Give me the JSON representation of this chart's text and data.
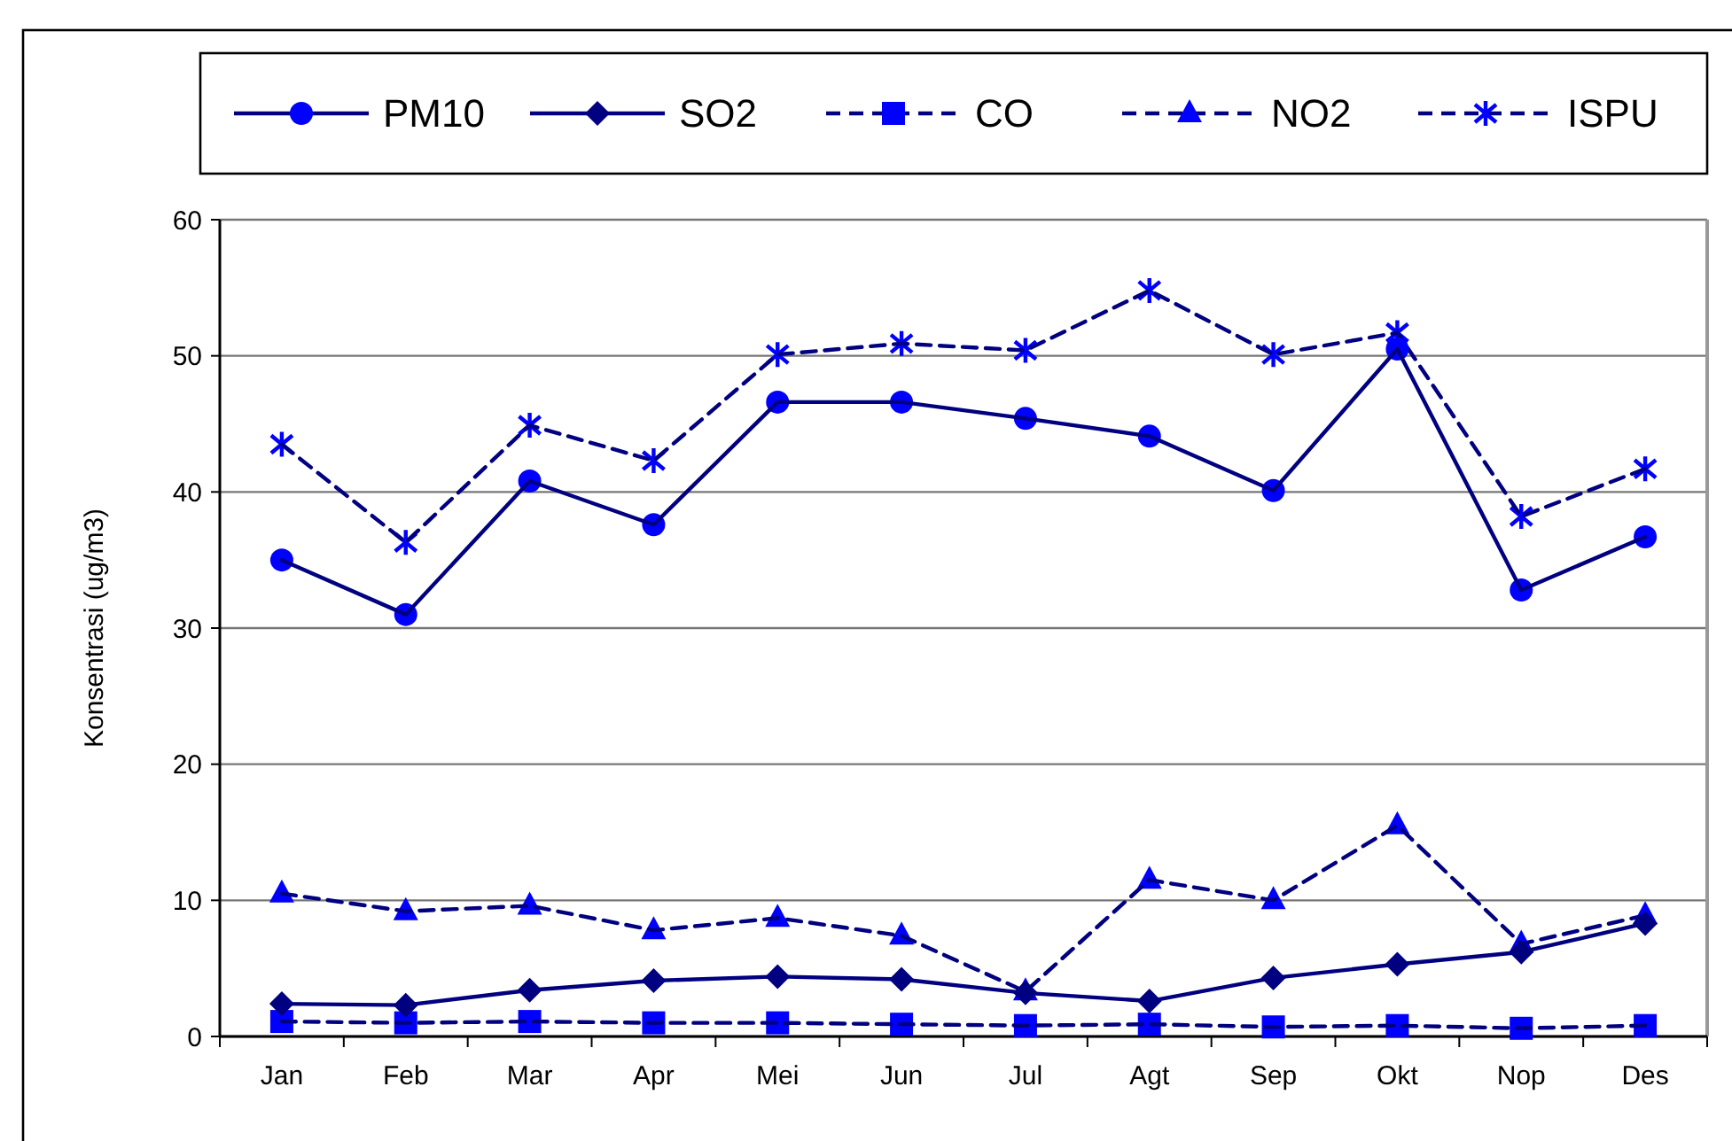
{
  "chart_data": {
    "type": "line",
    "ylabel": "Konsentrasi (ug/m3)",
    "categories": [
      "Jan",
      "Feb",
      "Mar",
      "Apr",
      "Mei",
      "Jun",
      "Jul",
      "Agt",
      "Sep",
      "Okt",
      "Nop",
      "Des"
    ],
    "series": [
      {
        "name": "PM10",
        "color": "#0000ff",
        "marker": "circle",
        "line_style": "solid",
        "values": [
          35.0,
          31.0,
          40.8,
          37.6,
          46.6,
          46.6,
          45.4,
          44.1,
          40.1,
          50.5,
          32.8,
          36.7
        ]
      },
      {
        "name": "SO2",
        "color": "#000080",
        "marker": "diamond",
        "line_style": "solid",
        "values": [
          2.4,
          2.3,
          3.4,
          4.1,
          4.4,
          4.2,
          3.2,
          2.6,
          4.3,
          5.3,
          6.2,
          8.3
        ]
      },
      {
        "name": "CO",
        "color": "#0000ff",
        "marker": "square",
        "line_style": "dashed",
        "values": [
          1.1,
          1.0,
          1.1,
          1.0,
          1.0,
          0.9,
          0.8,
          0.9,
          0.7,
          0.8,
          0.6,
          0.8
        ]
      },
      {
        "name": "NO2",
        "color": "#0000ff",
        "marker": "triangle",
        "line_style": "dashed",
        "values": [
          10.5,
          9.2,
          9.6,
          7.8,
          8.7,
          7.4,
          3.3,
          11.5,
          10.0,
          15.5,
          6.8,
          8.9
        ]
      },
      {
        "name": "ISPU",
        "color": "#0000ff",
        "marker": "cross",
        "line_style": "dashed",
        "values": [
          43.5,
          36.3,
          44.9,
          42.3,
          50.1,
          50.9,
          50.4,
          54.8,
          50.1,
          51.7,
          38.2,
          41.7
        ]
      }
    ],
    "ylim": [
      0,
      60
    ],
    "yticks": [
      0,
      10,
      20,
      30,
      40,
      50,
      60
    ],
    "grid": "y",
    "legend": "top"
  }
}
